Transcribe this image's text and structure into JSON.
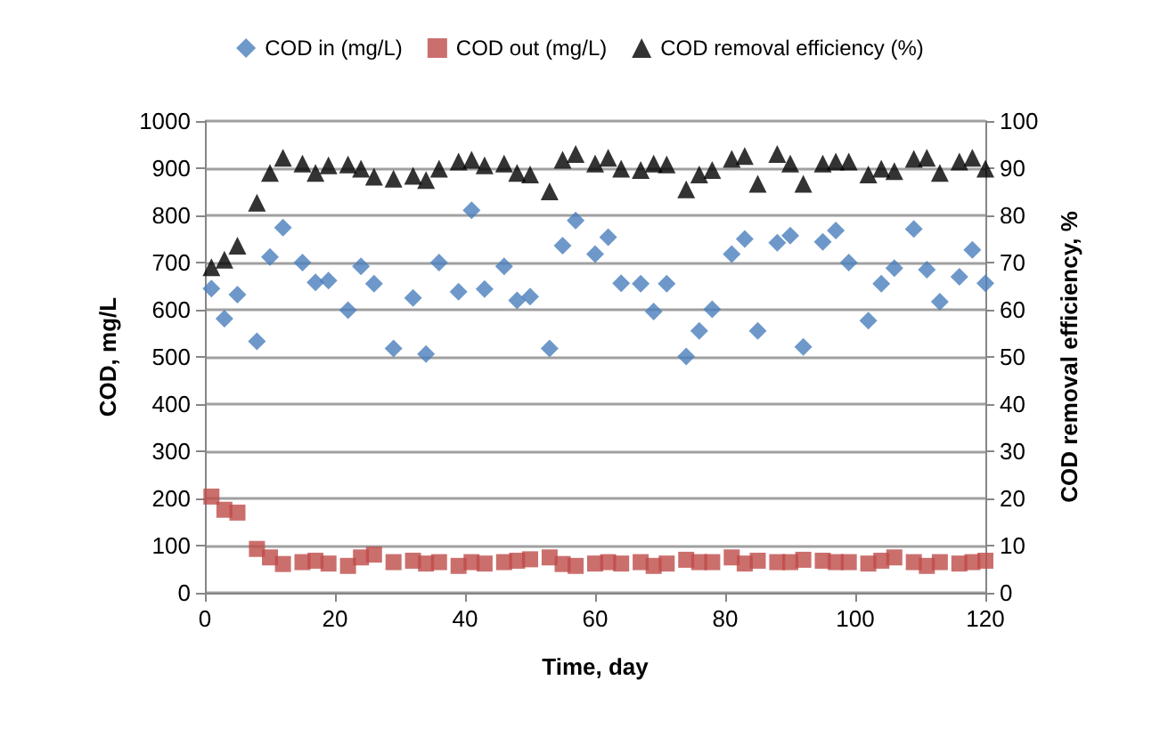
{
  "chart_data": {
    "type": "scatter",
    "xlabel": "Time, day",
    "ylabel": "COD, mg/L",
    "y2label": "COD removal efficiency, %",
    "x": [
      1,
      3,
      5,
      8,
      10,
      12,
      15,
      17,
      19,
      22,
      24,
      26,
      29,
      32,
      34,
      36,
      39,
      41,
      43,
      46,
      48,
      50,
      53,
      55,
      57,
      60,
      62,
      64,
      67,
      69,
      71,
      74,
      76,
      78,
      81,
      83,
      85,
      88,
      90,
      92,
      95,
      97,
      99,
      102,
      104,
      106,
      109,
      111,
      113,
      116,
      118,
      120
    ],
    "series": [
      {
        "name": "COD in (mg/L)",
        "color": "#4a7ebb",
        "marker": "diamond",
        "values": [
          645,
          581,
          632,
          533,
          712,
          774,
          700,
          658,
          662,
          599,
          692,
          655,
          518,
          625,
          506,
          700,
          638,
          811,
          644,
          692,
          620,
          628,
          518,
          736,
          789,
          718,
          754,
          656,
          655,
          596,
          655,
          501,
          555,
          601,
          718,
          750,
          555,
          742,
          757,
          521,
          744,
          768,
          700,
          577,
          655,
          688,
          771,
          685,
          617,
          670,
          727,
          656
        ]
      },
      {
        "name": "COD out (mg/L)",
        "color": "#be4b48",
        "marker": "square",
        "values": [
          204,
          176,
          170,
          93,
          75,
          61,
          65,
          68,
          62,
          57,
          75,
          81,
          65,
          68,
          62,
          65,
          57,
          65,
          62,
          65,
          68,
          71,
          75,
          61,
          57,
          62,
          65,
          62,
          65,
          57,
          62,
          70,
          65,
          65,
          75,
          62,
          68,
          65,
          65,
          70,
          68,
          65,
          65,
          62,
          68,
          75,
          65,
          57,
          65,
          62,
          65,
          68
        ]
      },
      {
        "name": "COD removal efficiency (%)",
        "color": "#000000",
        "marker": "triangle",
        "axis": "y2",
        "values": [
          69,
          70.6,
          73.6,
          82.7,
          89,
          92.2,
          91,
          89,
          90.6,
          90.8,
          89.9,
          88.2,
          87.8,
          88.4,
          87.5,
          89.9,
          91.4,
          91.8,
          90.6,
          91,
          89,
          88.7,
          85.1,
          91.8,
          93,
          91,
          92.2,
          89.9,
          89.6,
          91,
          90.8,
          85.5,
          88.7,
          89.6,
          92,
          92.6,
          86.7,
          93,
          91,
          86.7,
          91,
          91.4,
          91.4,
          88.7,
          89.9,
          89.4,
          92,
          92.2,
          89,
          91.4,
          92.2,
          89.9
        ]
      }
    ],
    "xlim": [
      0,
      120
    ],
    "xticks": [
      0,
      20,
      40,
      60,
      80,
      100,
      120
    ],
    "ylim": [
      0,
      1000
    ],
    "yticks": [
      0,
      100,
      200,
      300,
      400,
      500,
      600,
      700,
      800,
      900,
      1000
    ],
    "y2lim": [
      0,
      100
    ],
    "y2ticks": [
      0,
      10,
      20,
      30,
      40,
      50,
      60,
      70,
      80,
      90,
      100
    ],
    "grid": "y",
    "legend": "top"
  }
}
